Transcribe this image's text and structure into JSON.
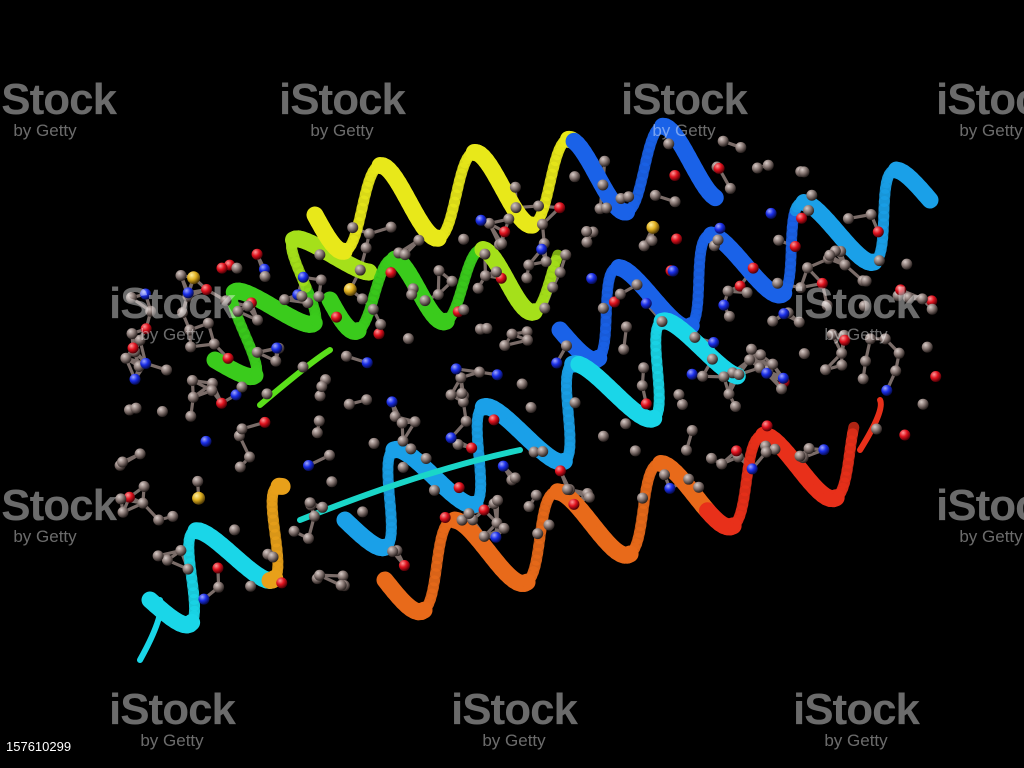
{
  "image": {
    "subject": "protein-ribbon-with-ball-and-stick-side-chains",
    "background": "#000000",
    "helix_colors": [
      "#3acb1c",
      "#a5e01a",
      "#e8e81a",
      "#1a62e8",
      "#1aa0e8",
      "#1ad6e8",
      "#e8a01a",
      "#e86a1a",
      "#e8301a"
    ],
    "atom_colors": {
      "carbon": "#8a7a76",
      "oxygen": "#e0121e",
      "nitrogen": "#1a2ee8",
      "sulfur": "#e0b020"
    }
  },
  "watermark": {
    "brand": "iStock",
    "tagline": "by Getty"
  },
  "stock_id": "157610299"
}
